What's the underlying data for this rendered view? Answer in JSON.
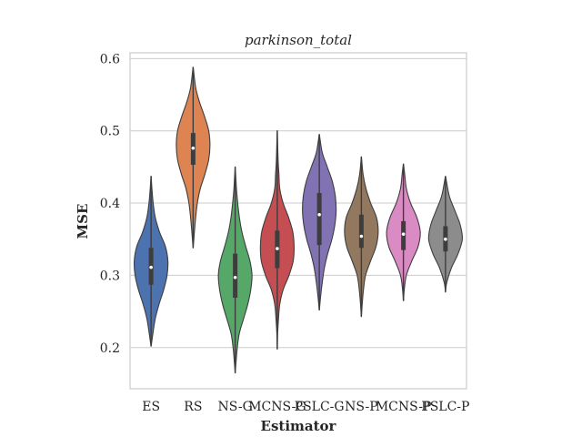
{
  "chart_data": {
    "type": "violin",
    "title": "parkinson_total",
    "xlabel": "Estimator",
    "ylabel": "MSE",
    "ylim": [
      0.143,
      0.608
    ],
    "yticks": [
      0.2,
      0.3,
      0.4,
      0.5,
      0.6
    ],
    "ytick_labels": [
      "0.2",
      "0.3",
      "0.4",
      "0.5",
      "0.6"
    ],
    "grid": true,
    "categories": [
      "ES",
      "RS",
      "NS-G",
      "MCNS-G",
      "PSLC-G",
      "NS-P",
      "MCNS-P",
      "PSLC-P"
    ],
    "series": [
      {
        "color": "#4c72b0",
        "min": 0.202,
        "max": 0.437,
        "q1": 0.287,
        "median": 0.311,
        "q3": 0.338,
        "density": [
          [
            0.202,
            0.002
          ],
          [
            0.22,
            0.045
          ],
          [
            0.24,
            0.1
          ],
          [
            0.26,
            0.19
          ],
          [
            0.28,
            0.3
          ],
          [
            0.3,
            0.38
          ],
          [
            0.32,
            0.4
          ],
          [
            0.34,
            0.34
          ],
          [
            0.36,
            0.2
          ],
          [
            0.38,
            0.1
          ],
          [
            0.4,
            0.05
          ],
          [
            0.42,
            0.02
          ],
          [
            0.437,
            0.002
          ]
        ]
      },
      {
        "color": "#dd8452",
        "min": 0.338,
        "max": 0.588,
        "q1": 0.453,
        "median": 0.476,
        "q3": 0.497,
        "density": [
          [
            0.338,
            0.002
          ],
          [
            0.36,
            0.03
          ],
          [
            0.38,
            0.06
          ],
          [
            0.4,
            0.1
          ],
          [
            0.42,
            0.17
          ],
          [
            0.44,
            0.28
          ],
          [
            0.46,
            0.37
          ],
          [
            0.48,
            0.4
          ],
          [
            0.5,
            0.37
          ],
          [
            0.52,
            0.27
          ],
          [
            0.54,
            0.15
          ],
          [
            0.56,
            0.06
          ],
          [
            0.588,
            0.002
          ]
        ]
      },
      {
        "color": "#55a868",
        "min": 0.165,
        "max": 0.45,
        "q1": 0.269,
        "median": 0.297,
        "q3": 0.33,
        "density": [
          [
            0.165,
            0.002
          ],
          [
            0.18,
            0.02
          ],
          [
            0.2,
            0.05
          ],
          [
            0.22,
            0.1
          ],
          [
            0.24,
            0.2
          ],
          [
            0.26,
            0.3
          ],
          [
            0.28,
            0.37
          ],
          [
            0.3,
            0.4
          ],
          [
            0.32,
            0.35
          ],
          [
            0.34,
            0.25
          ],
          [
            0.36,
            0.16
          ],
          [
            0.38,
            0.1
          ],
          [
            0.4,
            0.06
          ],
          [
            0.42,
            0.03
          ],
          [
            0.45,
            0.002
          ]
        ]
      },
      {
        "color": "#c44e52",
        "min": 0.198,
        "max": 0.5,
        "q1": 0.31,
        "median": 0.337,
        "q3": 0.362,
        "density": [
          [
            0.198,
            0.002
          ],
          [
            0.22,
            0.01
          ],
          [
            0.24,
            0.03
          ],
          [
            0.26,
            0.06
          ],
          [
            0.28,
            0.14
          ],
          [
            0.3,
            0.28
          ],
          [
            0.32,
            0.38
          ],
          [
            0.34,
            0.4
          ],
          [
            0.36,
            0.37
          ],
          [
            0.38,
            0.27
          ],
          [
            0.4,
            0.14
          ],
          [
            0.42,
            0.06
          ],
          [
            0.44,
            0.04
          ],
          [
            0.46,
            0.02
          ],
          [
            0.5,
            0.002
          ]
        ]
      },
      {
        "color": "#8172b3",
        "min": 0.252,
        "max": 0.495,
        "q1": 0.342,
        "median": 0.384,
        "q3": 0.414,
        "density": [
          [
            0.252,
            0.002
          ],
          [
            0.27,
            0.03
          ],
          [
            0.29,
            0.07
          ],
          [
            0.31,
            0.12
          ],
          [
            0.33,
            0.2
          ],
          [
            0.35,
            0.3
          ],
          [
            0.37,
            0.37
          ],
          [
            0.39,
            0.4
          ],
          [
            0.41,
            0.38
          ],
          [
            0.43,
            0.31
          ],
          [
            0.45,
            0.19
          ],
          [
            0.47,
            0.07
          ],
          [
            0.495,
            0.002
          ]
        ]
      },
      {
        "color": "#937860",
        "min": 0.243,
        "max": 0.464,
        "q1": 0.338,
        "median": 0.354,
        "q3": 0.384,
        "density": [
          [
            0.243,
            0.002
          ],
          [
            0.26,
            0.02
          ],
          [
            0.28,
            0.05
          ],
          [
            0.3,
            0.1
          ],
          [
            0.32,
            0.22
          ],
          [
            0.34,
            0.35
          ],
          [
            0.36,
            0.4
          ],
          [
            0.38,
            0.36
          ],
          [
            0.4,
            0.22
          ],
          [
            0.42,
            0.11
          ],
          [
            0.44,
            0.04
          ],
          [
            0.464,
            0.002
          ]
        ]
      },
      {
        "color": "#da8bc3",
        "min": 0.265,
        "max": 0.454,
        "q1": 0.335,
        "median": 0.357,
        "q3": 0.375,
        "density": [
          [
            0.265,
            0.002
          ],
          [
            0.28,
            0.02
          ],
          [
            0.3,
            0.07
          ],
          [
            0.32,
            0.2
          ],
          [
            0.34,
            0.35
          ],
          [
            0.36,
            0.4
          ],
          [
            0.38,
            0.32
          ],
          [
            0.4,
            0.17
          ],
          [
            0.42,
            0.07
          ],
          [
            0.44,
            0.03
          ],
          [
            0.454,
            0.002
          ]
        ]
      },
      {
        "color": "#8c8c8c",
        "min": 0.277,
        "max": 0.437,
        "q1": 0.333,
        "median": 0.35,
        "q3": 0.368,
        "density": [
          [
            0.277,
            0.002
          ],
          [
            0.29,
            0.03
          ],
          [
            0.31,
            0.14
          ],
          [
            0.33,
            0.3
          ],
          [
            0.35,
            0.4
          ],
          [
            0.37,
            0.35
          ],
          [
            0.39,
            0.22
          ],
          [
            0.41,
            0.09
          ],
          [
            0.437,
            0.002
          ]
        ]
      }
    ]
  }
}
